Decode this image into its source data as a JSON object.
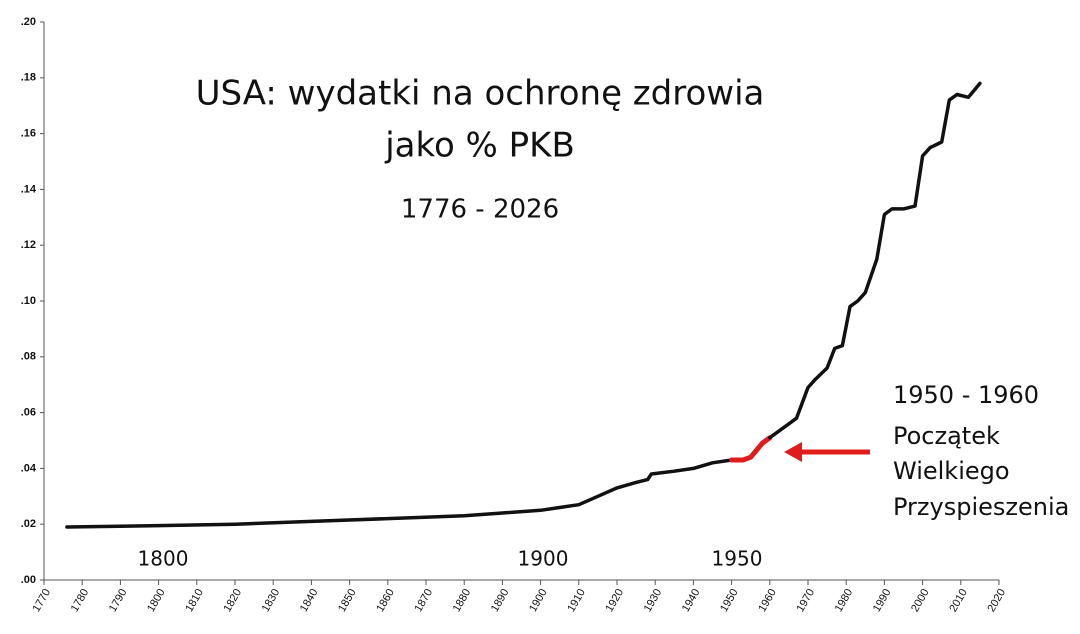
{
  "chart_data": {
    "type": "line",
    "title": [
      "USA: wydatki na ochronę zdrowia",
      "jako % PKB"
    ],
    "subtitle": "1776 - 2026",
    "annotations": [
      "1800",
      "1900",
      "1950"
    ],
    "note": [
      "1950 - 1960",
      "Początek",
      "Wielkiego",
      "Przyspieszenia"
    ],
    "note_color": "#e01b1b",
    "xlim": [
      1770,
      2020
    ],
    "xticks": [
      1770,
      1780,
      1790,
      1800,
      1810,
      1820,
      1830,
      1840,
      1850,
      1860,
      1870,
      1880,
      1890,
      1900,
      1910,
      1920,
      1930,
      1940,
      1950,
      1960,
      1970,
      1980,
      1990,
      2000,
      2010,
      2020
    ],
    "ylim": [
      0,
      0.2
    ],
    "yticks": [
      {
        "value": 0,
        "label": ".00"
      },
      {
        "value": 0.02,
        "label": ".02"
      },
      {
        "value": 0.04,
        "label": ".04"
      },
      {
        "value": 0.06,
        "label": ".06"
      },
      {
        "value": 0.08,
        "label": ".08"
      },
      {
        "value": 0.1,
        "label": ".10"
      },
      {
        "value": 0.12,
        "label": ".12"
      },
      {
        "value": 0.14,
        "label": ".14"
      },
      {
        "value": 0.16,
        "label": ".16"
      },
      {
        "value": 0.18,
        "label": ".18"
      },
      {
        "value": 0.2,
        "label": ".20"
      }
    ],
    "series": [
      {
        "color": "#111111",
        "x": [
          1776,
          1800,
          1820,
          1840,
          1860,
          1880,
          1890,
          1900,
          1905,
          1910,
          1915,
          1920,
          1925,
          1928,
          1929,
          1935,
          1940,
          1945,
          1950
        ],
        "values": [
          0.019,
          0.0195,
          0.02,
          0.021,
          0.022,
          0.023,
          0.024,
          0.025,
          0.026,
          0.027,
          0.03,
          0.033,
          0.035,
          0.036,
          0.038,
          0.039,
          0.04,
          0.042,
          0.043
        ]
      },
      {
        "color": "#e01b1b",
        "x": [
          1950,
          1953,
          1955,
          1958,
          1960
        ],
        "values": [
          0.043,
          0.043,
          0.044,
          0.049,
          0.051
        ]
      },
      {
        "color": "#111111",
        "x": [
          1960,
          1963,
          1965,
          1967,
          1970,
          1972,
          1975,
          1977,
          1979,
          1981,
          1983,
          1985,
          1988,
          1990,
          1992,
          1995,
          1998,
          2000,
          2002,
          2005,
          2007,
          2009,
          2012,
          2015
        ],
        "values": [
          0.051,
          0.054,
          0.056,
          0.058,
          0.069,
          0.072,
          0.076,
          0.083,
          0.084,
          0.098,
          0.1,
          0.103,
          0.115,
          0.131,
          0.133,
          0.133,
          0.134,
          0.152,
          0.155,
          0.157,
          0.172,
          0.174,
          0.173,
          0.178
        ]
      }
    ]
  }
}
